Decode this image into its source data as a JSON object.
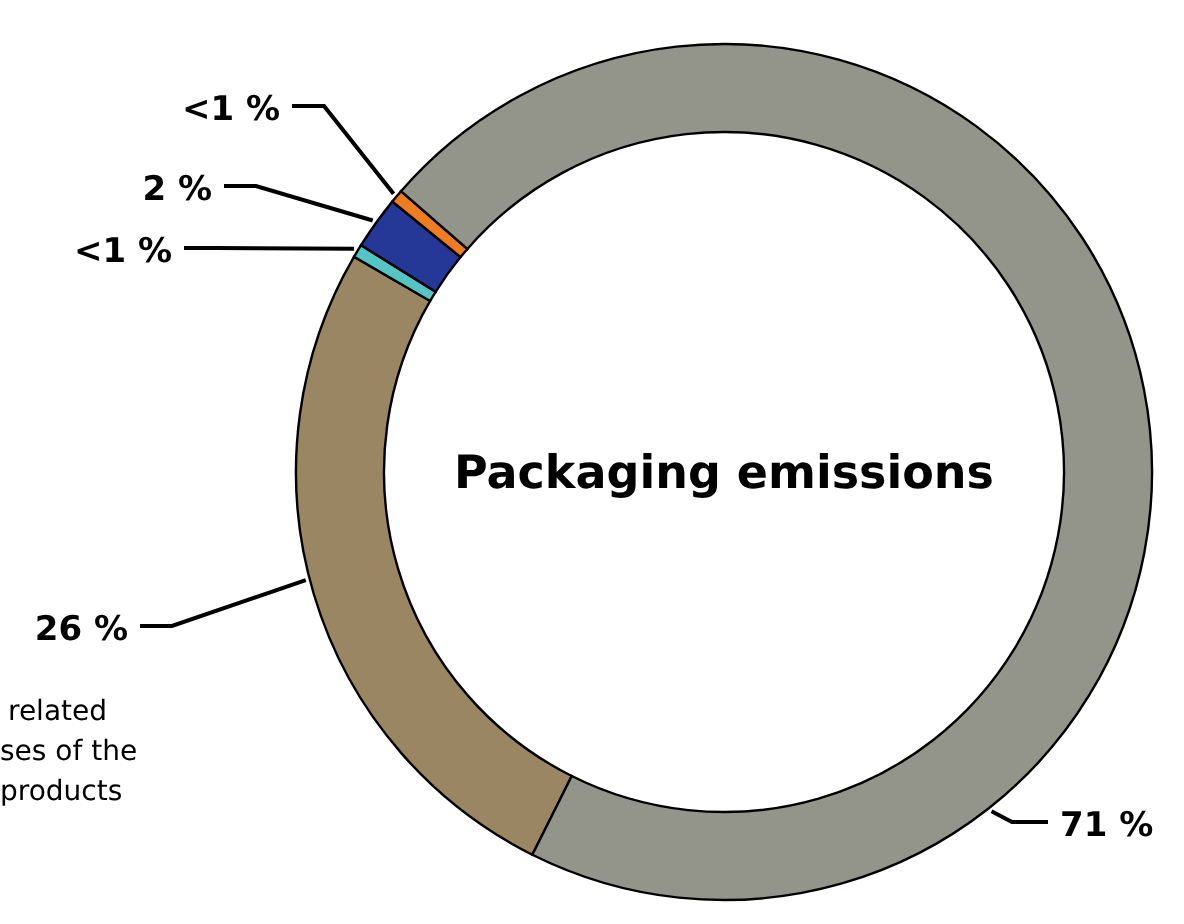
{
  "chart_data": {
    "type": "donut",
    "title": "Packaging emissions",
    "categories": [
      null,
      null,
      null,
      null,
      null
    ],
    "values": [
      26,
      0.5,
      2,
      0.5,
      71
    ],
    "value_labels": [
      "26 %",
      "<1 %",
      "2 %",
      "<1 %",
      "71 %"
    ],
    "colors": [
      "#9a8663",
      "#55c4c4",
      "#263897",
      "#f07c22",
      "#94958a"
    ],
    "annotations": [
      "related\nses of the\nproducts"
    ]
  }
}
